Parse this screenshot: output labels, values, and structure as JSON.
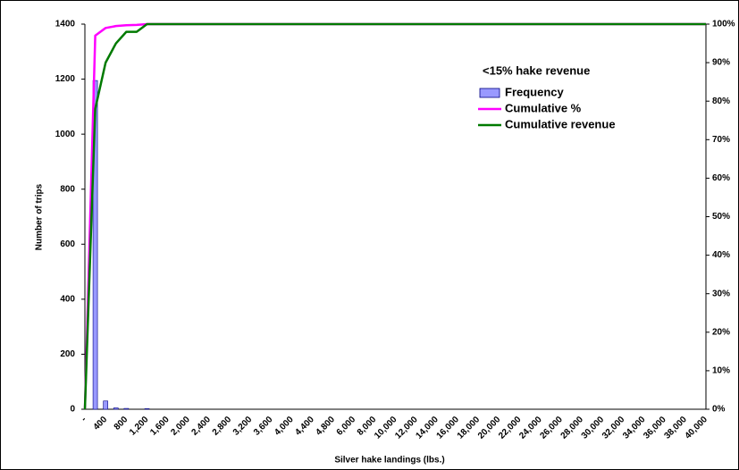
{
  "chart_data": {
    "type": "bar_line",
    "x_label": "Silver hake landings (lbs.)",
    "y_label": "Number of trips",
    "legend_title": "<15% hake revenue",
    "legend": "upper right",
    "categories": [
      "-",
      null,
      "400",
      null,
      "800",
      null,
      "1,200",
      null,
      "1,600",
      null,
      "2,000",
      null,
      "2,400",
      null,
      "2,800",
      null,
      "3,200",
      null,
      "3,600",
      null,
      "4,000",
      null,
      "4,400",
      null,
      "4,800",
      null,
      "6,000",
      null,
      "8,000",
      null,
      "10,000",
      null,
      "12,000",
      null,
      "14,000",
      null,
      "16,000",
      null,
      "18,000",
      null,
      "20,000",
      null,
      "22,000",
      null,
      "24,000",
      null,
      "26,000",
      null,
      "28,000",
      null,
      "30,000",
      null,
      "32,000",
      null,
      "34,000",
      null,
      "36,000",
      null,
      "38,000",
      null,
      "40,000"
    ],
    "ylim": [
      0,
      1400
    ],
    "yticks": [
      0,
      200,
      400,
      600,
      800,
      1000,
      1200,
      1400
    ],
    "y2lim": [
      0,
      100
    ],
    "y2ticks": [
      {
        "value": 0,
        "label": "0%"
      },
      {
        "value": 10,
        "label": "10%"
      },
      {
        "value": 20,
        "label": "20%"
      },
      {
        "value": 30,
        "label": "30%"
      },
      {
        "value": 40,
        "label": "40%"
      },
      {
        "value": 50,
        "label": "50%"
      },
      {
        "value": 60,
        "label": "60%"
      },
      {
        "value": 70,
        "label": "70%"
      },
      {
        "value": 80,
        "label": "80%"
      },
      {
        "value": 90,
        "label": "90%"
      },
      {
        "value": 100,
        "label": "100%"
      }
    ],
    "series": [
      {
        "name": "Frequency",
        "kind": "bar",
        "color": "#9999ff",
        "values": [
          0,
          1195,
          30,
          5,
          3,
          0,
          2,
          0,
          0,
          0,
          0,
          0,
          0,
          0,
          0,
          0,
          0,
          0,
          0,
          0,
          0,
          0,
          0,
          0,
          0,
          0,
          0,
          0,
          0,
          0,
          0,
          0,
          0,
          0,
          0,
          0,
          0,
          0,
          0,
          0,
          0,
          0,
          0,
          0,
          0,
          0,
          0,
          0,
          0,
          0,
          0,
          0,
          0,
          0,
          0,
          0,
          0,
          0,
          0,
          0,
          0
        ]
      },
      {
        "name": "Cumulative %",
        "kind": "line",
        "axis": "y2",
        "color": "#ff00ff",
        "values": [
          0,
          97,
          99,
          99.5,
          99.7,
          99.8,
          100,
          100,
          100,
          100,
          100,
          100,
          100,
          100,
          100,
          100,
          100,
          100,
          100,
          100,
          100,
          100,
          100,
          100,
          100,
          100,
          100,
          100,
          100,
          100,
          100,
          100,
          100,
          100,
          100,
          100,
          100,
          100,
          100,
          100,
          100,
          100,
          100,
          100,
          100,
          100,
          100,
          100,
          100,
          100,
          100,
          100,
          100,
          100,
          100,
          100,
          100,
          100,
          100,
          100,
          100
        ]
      },
      {
        "name": "Cumulative revenue",
        "kind": "line",
        "axis": "y2",
        "color": "#007a00",
        "values": [
          0,
          78,
          90,
          95,
          98,
          98,
          100,
          100,
          100,
          100,
          100,
          100,
          100,
          100,
          100,
          100,
          100,
          100,
          100,
          100,
          100,
          100,
          100,
          100,
          100,
          100,
          100,
          100,
          100,
          100,
          100,
          100,
          100,
          100,
          100,
          100,
          100,
          100,
          100,
          100,
          100,
          100,
          100,
          100,
          100,
          100,
          100,
          100,
          100,
          100,
          100,
          100,
          100,
          100,
          100,
          100,
          100,
          100,
          100,
          100,
          100
        ]
      }
    ]
  }
}
